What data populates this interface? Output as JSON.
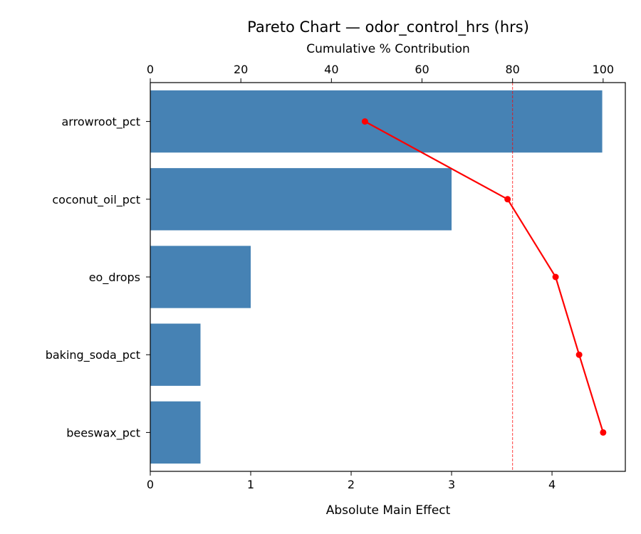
{
  "chart_data": {
    "type": "bar",
    "orientation": "horizontal",
    "title": "Pareto Chart — odor_control_hrs (hrs)",
    "xlabel": "Absolute Main Effect",
    "x2label": "Cumulative % Contribution",
    "categories": [
      "arrowroot_pct",
      "coconut_oil_pct",
      "eo_drops",
      "baking_soda_pct",
      "beeswax_pct"
    ],
    "values": [
      4.5,
      3.0,
      1.0,
      0.5,
      0.5
    ],
    "cumulative_pct": [
      47.4,
      78.9,
      89.5,
      94.7,
      100.0
    ],
    "threshold_pct": 80,
    "xlim": [
      0,
      4.73
    ],
    "x2lim": [
      0,
      104.9
    ],
    "xticks": [
      0,
      1,
      2,
      3,
      4
    ],
    "x2ticks": [
      0,
      20,
      40,
      60,
      80,
      100
    ],
    "grid": false,
    "colors": {
      "bar": "#4682b4",
      "cumulative_line": "#ff0000",
      "threshold_line": "#ff0000"
    }
  }
}
